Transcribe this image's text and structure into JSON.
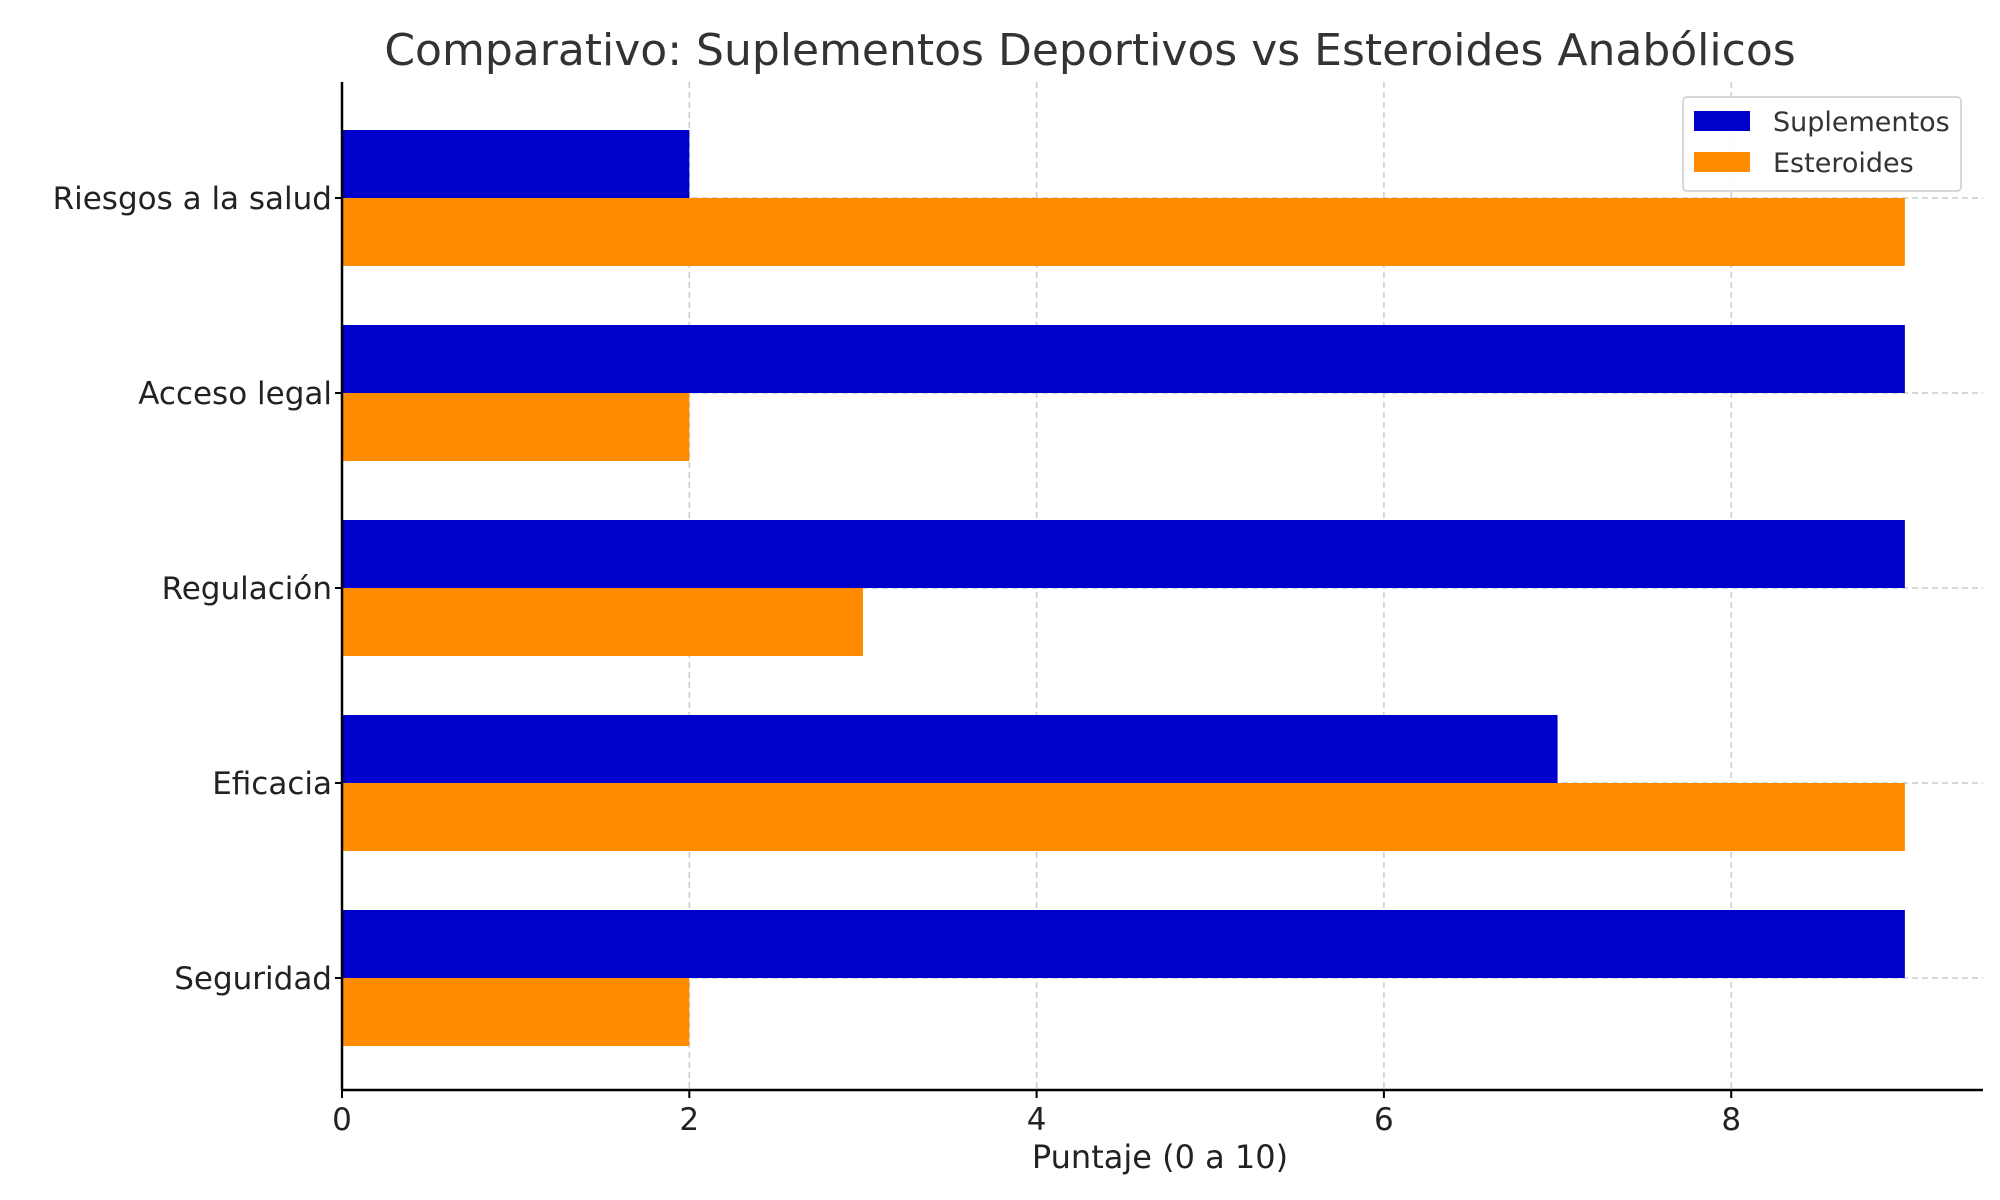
{
  "chart_data": {
    "type": "bar",
    "orientation": "horizontal",
    "title": "Comparativo: Suplementos Deportivos vs Esteroides Anabólicos",
    "xlabel": "Puntaje (0 a 10)",
    "ylabel": "",
    "categories": [
      "Riesgos a la salud",
      "Acceso legal",
      "Regulación",
      "Eficacia",
      "Seguridad"
    ],
    "series": [
      {
        "name": "Suplementos",
        "values": [
          2,
          9,
          9,
          7,
          9
        ],
        "color": "#0000cc"
      },
      {
        "name": "Esteroides",
        "values": [
          9,
          2,
          3,
          9,
          2
        ],
        "color": "#ff8c00"
      }
    ],
    "xlim": [
      0,
      9.45
    ],
    "xticks": [
      0,
      2,
      4,
      6,
      8
    ],
    "grid": true,
    "legend_position": "top-right"
  }
}
